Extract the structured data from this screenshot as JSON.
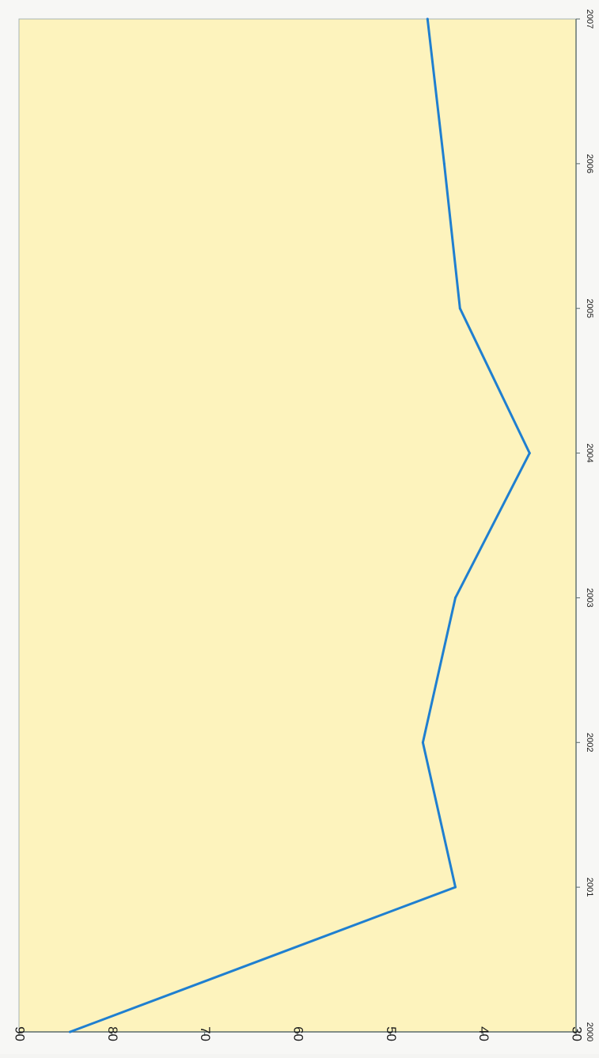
{
  "chart_data": {
    "type": "line",
    "orientation": "rotated-90-clockwise",
    "title": "",
    "xlabel": "",
    "ylabel": "",
    "x": [
      2000,
      2001,
      2002,
      2003,
      2004,
      2005,
      2006,
      2007
    ],
    "x_tick_labels": [
      "2000",
      "2001",
      "2002",
      "2003",
      "2004",
      "2005",
      "2006",
      "2007"
    ],
    "xlim": [
      2000,
      2007
    ],
    "ylim": [
      30,
      90
    ],
    "y_ticks": [
      30,
      40,
      50,
      60,
      70,
      80,
      90
    ],
    "y_tick_labels": [
      "30",
      "40",
      "50",
      "60",
      "70",
      "80",
      "90"
    ],
    "series": [
      {
        "values": [
          84.5,
          43,
          46.5,
          43,
          35,
          42.5,
          44.2,
          46
        ]
      }
    ],
    "grid": false,
    "legend": "none",
    "colors": {
      "plot_background": "#fdf3bd",
      "line": "#1f7fd0",
      "axis": "#5a6b6b",
      "frame": "#a7b4b4"
    }
  }
}
